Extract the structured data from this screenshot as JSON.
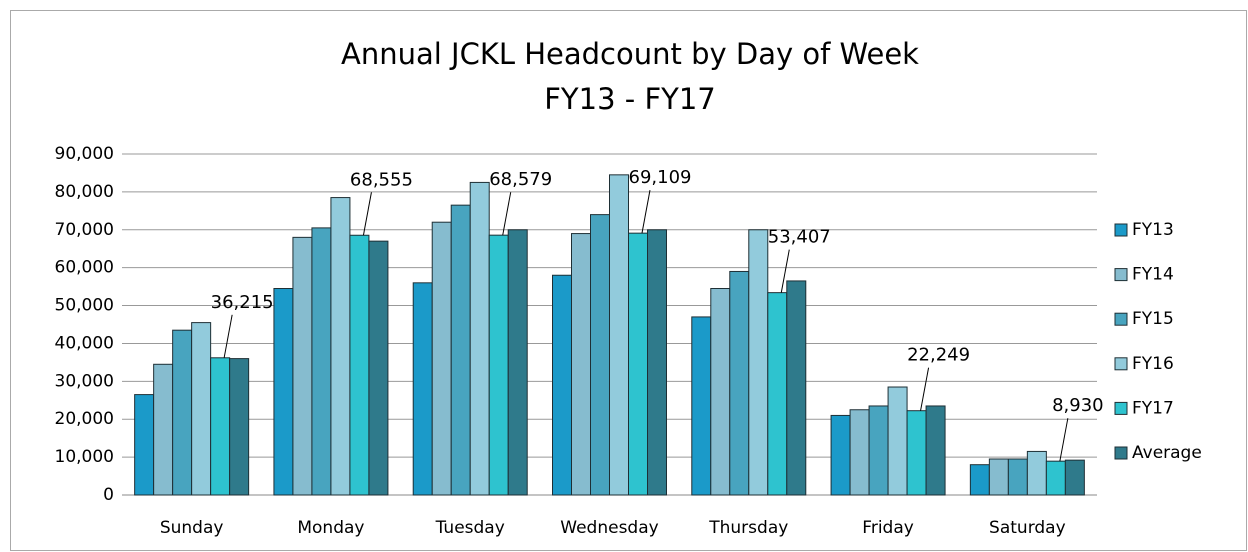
{
  "chart_data": {
    "type": "bar",
    "title": "Annual JCKL Headcount by Day of Week",
    "subtitle": "FY13 - FY17",
    "categories": [
      "Sunday",
      "Monday",
      "Tuesday",
      "Wednesday",
      "Thursday",
      "Friday",
      "Saturday"
    ],
    "series": [
      {
        "name": "FY13",
        "color": "#1b9ac9",
        "values": [
          26500,
          54500,
          56000,
          58000,
          47000,
          21000,
          8000
        ]
      },
      {
        "name": "FY14",
        "color": "#86bccf",
        "values": [
          34500,
          68000,
          72000,
          69000,
          54500,
          22500,
          9500
        ]
      },
      {
        "name": "FY15",
        "color": "#48a4bf",
        "values": [
          43500,
          70500,
          76500,
          74000,
          59000,
          23500,
          9500
        ]
      },
      {
        "name": "FY16",
        "color": "#92cbdc",
        "values": [
          45500,
          78500,
          82500,
          84500,
          70000,
          28500,
          11500
        ]
      },
      {
        "name": "FY17",
        "color": "#2ec3cf",
        "values": [
          36215,
          68555,
          68579,
          69109,
          53407,
          22249,
          8930
        ],
        "value_labels": [
          "36,215",
          "68,555",
          "68,579",
          "69,109",
          "53,407",
          "22,249",
          "8,930"
        ]
      },
      {
        "name": "Average",
        "color": "#2f7a8b",
        "values": [
          36000,
          67000,
          70000,
          70000,
          56500,
          23500,
          9200
        ]
      }
    ],
    "ylim": [
      0,
      90000
    ],
    "yticks": [
      0,
      {
        "value": 10000,
        "label": "10,000"
      },
      {
        "value": 20000,
        "label": "20,000"
      },
      {
        "value": 30000,
        "label": "30,000"
      },
      {
        "value": 40000,
        "label": "40,000"
      },
      {
        "value": 50000,
        "label": "50,000"
      },
      {
        "value": 60000,
        "label": "60,000"
      },
      {
        "value": 70000,
        "label": "70,000"
      },
      {
        "value": 80000,
        "label": "80,000"
      },
      {
        "value": 90000,
        "label": "90,000"
      }
    ],
    "grid": true,
    "legend": "right"
  }
}
